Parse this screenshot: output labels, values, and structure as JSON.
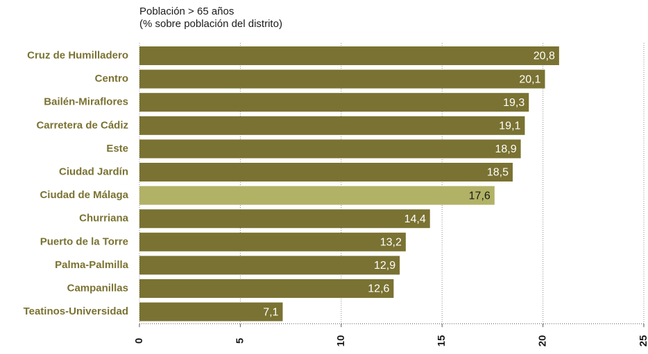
{
  "chart_data": {
    "type": "barh",
    "title": "Población > 65 años",
    "subtitle": "(% sobre población del distrito)",
    "categories": [
      "Cruz de Humilladero",
      "Centro",
      "Bailén-Miraflores",
      "Carretera de Cádiz",
      "Este",
      "Ciudad Jardín",
      "Ciudad de Málaga",
      "Churriana",
      "Puerto de la Torre",
      "Palma-Palmilla",
      "Campanillas",
      "Teatinos-Universidad"
    ],
    "values": [
      20.8,
      20.1,
      19.3,
      19.1,
      18.9,
      18.5,
      17.6,
      14.4,
      13.2,
      12.9,
      12.6,
      7.1
    ],
    "value_labels": [
      "20,8",
      "20,1",
      "19,3",
      "19,1",
      "18,9",
      "18,5",
      "17,6",
      "14,4",
      "13,2",
      "12,9",
      "12,6",
      "7,1"
    ],
    "colors": [
      "#7a7232",
      "#7a7232",
      "#7a7232",
      "#7a7232",
      "#7a7232",
      "#7a7232",
      "#b1b266",
      "#7a7232",
      "#7a7232",
      "#7a7232",
      "#7a7232",
      "#7a7232"
    ],
    "value_label_colors": [
      "#ffffff",
      "#ffffff",
      "#ffffff",
      "#ffffff",
      "#ffffff",
      "#ffffff",
      "#1a1a1a",
      "#ffffff",
      "#ffffff",
      "#ffffff",
      "#ffffff",
      "#ffffff"
    ],
    "xlim": [
      0,
      25
    ],
    "xticks": [
      0,
      5,
      10,
      15,
      20,
      25
    ],
    "grid": true
  }
}
